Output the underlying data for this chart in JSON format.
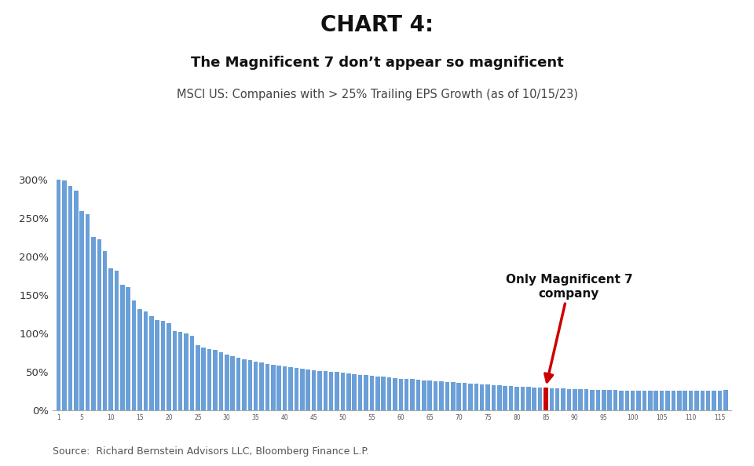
{
  "title": "CHART 4:",
  "subtitle": "The Magnificent 7 don’t appear so magnificent",
  "subtitle2": "MSCI US: Companies with > 25% Trailing EPS Growth (as of 10/15/23)",
  "source": "Source:  Richard Bernstein Advisors LLC, Bloomberg Finance L.P.",
  "bar_color": "#6a9fd8",
  "highlight_color": "#cc0000",
  "background_color": "#ffffff",
  "annotation_text": "Only Magnificent 7\ncompany",
  "mag7_index": 84,
  "num_bars": 116,
  "values": [
    300,
    299,
    291,
    285,
    259,
    255,
    225,
    222,
    207,
    184,
    181,
    163,
    160,
    142,
    131,
    128,
    122,
    117,
    116,
    113,
    103,
    102,
    100,
    97,
    84,
    81,
    79,
    78,
    75,
    72,
    70,
    68,
    66,
    65,
    63,
    62,
    60,
    59,
    58,
    57,
    56,
    55,
    54,
    53,
    52,
    51,
    51,
    50,
    50,
    49,
    48,
    47,
    46,
    46,
    45,
    44,
    44,
    43,
    42,
    41,
    40,
    40,
    39,
    38,
    38,
    37,
    37,
    36,
    36,
    35,
    35,
    34,
    34,
    33,
    33,
    32,
    32,
    31,
    31,
    30,
    30,
    30,
    29,
    29,
    29,
    28,
    28,
    28,
    27,
    27,
    27,
    27,
    26,
    26,
    26,
    26,
    26,
    25,
    25,
    25,
    25,
    25,
    25,
    25,
    25,
    25,
    25,
    25,
    25,
    25,
    25,
    25,
    25,
    25,
    25,
    26
  ],
  "ylim": [
    0,
    315
  ],
  "yticks": [
    0,
    50,
    100,
    150,
    200,
    250,
    300
  ],
  "title_fontsize": 20,
  "subtitle_fontsize": 13,
  "subtitle2_fontsize": 10.5,
  "source_fontsize": 9
}
